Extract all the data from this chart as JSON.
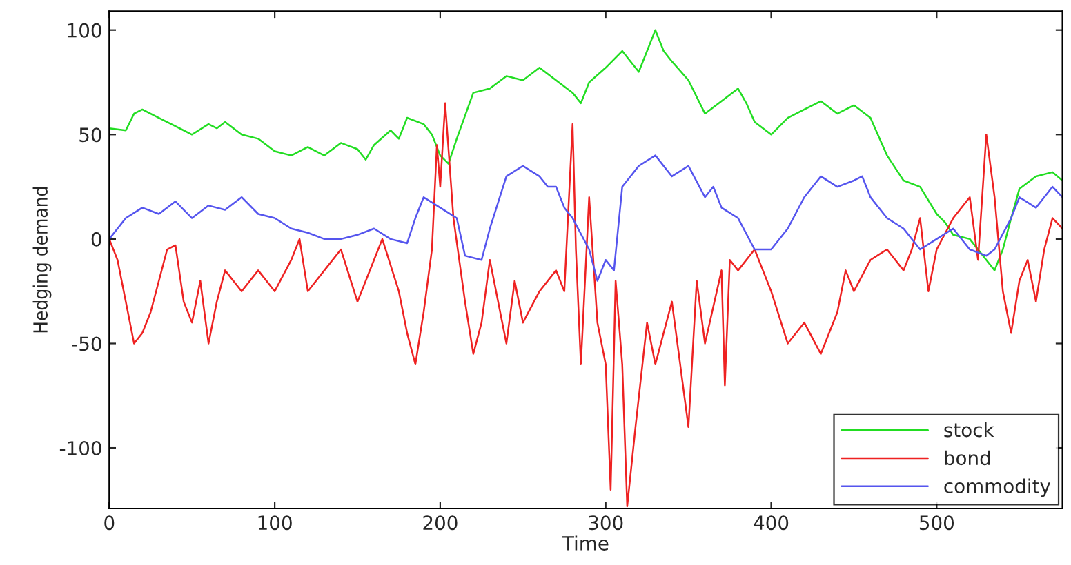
{
  "chart_data": {
    "type": "line",
    "xlabel": "Time",
    "ylabel": "Hedging demand",
    "xlim": [
      0,
      576
    ],
    "ylim": [
      -129,
      109
    ],
    "xticks": [
      0,
      100,
      200,
      300,
      400,
      500
    ],
    "yticks": [
      -100,
      -50,
      0,
      50,
      100
    ],
    "grid": false,
    "legend": "bottom right",
    "line_style": "solid",
    "marker": "none",
    "series": [
      {
        "name": "stock",
        "color": "#22dd22",
        "x": [
          0,
          10,
          15,
          20,
          30,
          40,
          50,
          60,
          65,
          70,
          80,
          90,
          100,
          110,
          120,
          125,
          130,
          140,
          150,
          155,
          160,
          170,
          175,
          180,
          190,
          195,
          200,
          205,
          210,
          220,
          230,
          240,
          250,
          260,
          270,
          280,
          285,
          290,
          300,
          310,
          315,
          320,
          330,
          335,
          340,
          350,
          360,
          370,
          380,
          385,
          390,
          400,
          410,
          420,
          430,
          440,
          450,
          460,
          470,
          480,
          490,
          500,
          505,
          510,
          520,
          530,
          535,
          540,
          545,
          550,
          560,
          570,
          576
        ],
        "values": [
          53,
          52,
          60,
          62,
          58,
          54,
          50,
          55,
          53,
          56,
          50,
          48,
          42,
          40,
          44,
          42,
          40,
          46,
          43,
          38,
          45,
          52,
          48,
          58,
          55,
          50,
          40,
          36,
          48,
          70,
          72,
          78,
          76,
          82,
          76,
          70,
          65,
          75,
          82,
          90,
          85,
          80,
          100,
          90,
          85,
          76,
          60,
          66,
          72,
          65,
          56,
          50,
          58,
          62,
          66,
          60,
          64,
          58,
          40,
          28,
          25,
          12,
          8,
          2,
          0,
          -10,
          -15,
          -5,
          10,
          24,
          30,
          32,
          28
        ]
      },
      {
        "name": "bond",
        "color": "#ee2222",
        "x": [
          0,
          5,
          10,
          15,
          20,
          25,
          30,
          35,
          40,
          45,
          50,
          55,
          60,
          65,
          70,
          80,
          90,
          100,
          110,
          115,
          120,
          130,
          140,
          150,
          160,
          165,
          175,
          180,
          185,
          190,
          195,
          198,
          200,
          203,
          208,
          215,
          220,
          225,
          230,
          240,
          245,
          250,
          260,
          270,
          275,
          280,
          282,
          285,
          290,
          295,
          300,
          303,
          306,
          310,
          313,
          318,
          325,
          330,
          340,
          350,
          355,
          360,
          370,
          372,
          375,
          380,
          390,
          395,
          400,
          410,
          420,
          430,
          440,
          445,
          450,
          460,
          470,
          480,
          485,
          490,
          495,
          500,
          510,
          520,
          525,
          530,
          535,
          540,
          545,
          550,
          555,
          560,
          565,
          570,
          576
        ],
        "values": [
          0,
          -10,
          -30,
          -50,
          -45,
          -35,
          -20,
          -5,
          -3,
          -30,
          -40,
          -20,
          -50,
          -30,
          -15,
          -25,
          -15,
          -25,
          -10,
          0,
          -25,
          -15,
          -5,
          -30,
          -10,
          0,
          -25,
          -45,
          -60,
          -35,
          -5,
          45,
          25,
          65,
          10,
          -30,
          -55,
          -40,
          -10,
          -50,
          -20,
          -40,
          -25,
          -15,
          -25,
          55,
          -5,
          -60,
          20,
          -40,
          -60,
          -120,
          -20,
          -60,
          -128,
          -90,
          -40,
          -60,
          -30,
          -90,
          -20,
          -50,
          -15,
          -70,
          -10,
          -15,
          -5,
          -15,
          -25,
          -50,
          -40,
          -55,
          -35,
          -15,
          -25,
          -10,
          -5,
          -15,
          -5,
          10,
          -25,
          -5,
          10,
          20,
          -10,
          50,
          20,
          -25,
          -45,
          -20,
          -10,
          -30,
          -5,
          10,
          5
        ]
      },
      {
        "name": "commodity",
        "color": "#5555ee",
        "x": [
          0,
          10,
          20,
          30,
          40,
          50,
          60,
          70,
          80,
          90,
          100,
          110,
          120,
          130,
          140,
          150,
          160,
          170,
          180,
          185,
          190,
          200,
          210,
          215,
          225,
          230,
          240,
          250,
          260,
          265,
          270,
          275,
          280,
          290,
          295,
          300,
          305,
          310,
          320,
          330,
          340,
          350,
          360,
          365,
          370,
          380,
          390,
          400,
          410,
          420,
          430,
          440,
          450,
          455,
          460,
          470,
          480,
          490,
          500,
          510,
          520,
          530,
          535,
          545,
          550,
          560,
          570,
          576
        ],
        "values": [
          0,
          10,
          15,
          12,
          18,
          10,
          16,
          14,
          20,
          12,
          10,
          5,
          3,
          0,
          0,
          2,
          5,
          0,
          -2,
          10,
          20,
          15,
          10,
          -8,
          -10,
          5,
          30,
          35,
          30,
          25,
          25,
          15,
          10,
          -5,
          -20,
          -10,
          -15,
          25,
          35,
          40,
          30,
          35,
          20,
          25,
          15,
          10,
          -5,
          -5,
          5,
          20,
          30,
          25,
          28,
          30,
          20,
          10,
          5,
          -5,
          0,
          5,
          -5,
          -8,
          -5,
          10,
          20,
          15,
          25,
          20
        ]
      }
    ]
  }
}
